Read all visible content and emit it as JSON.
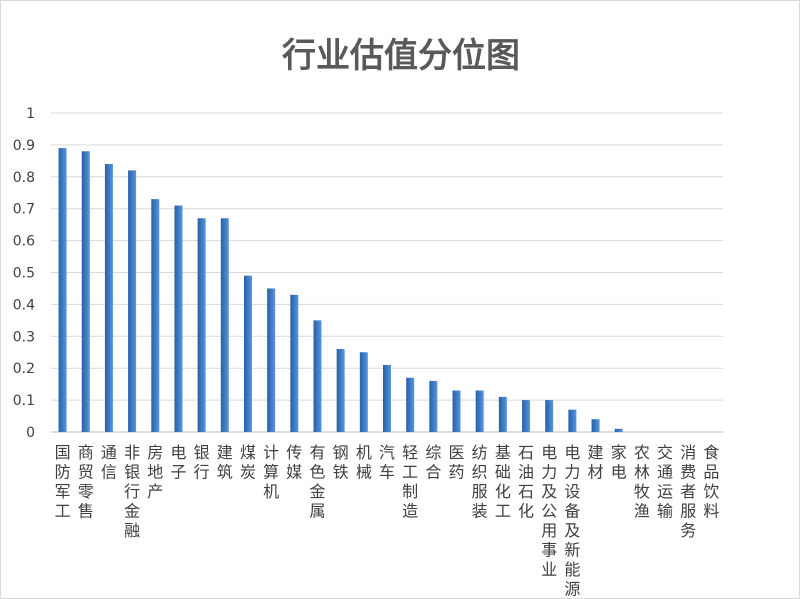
{
  "chart_data": {
    "type": "bar",
    "title": "行业估值分位图",
    "xlabel": "",
    "ylabel": "",
    "ylim": [
      0,
      1
    ],
    "yticks": [
      "0",
      "0.1",
      "0.2",
      "0.3",
      "0.4",
      "0.5",
      "0.6",
      "0.7",
      "0.8",
      "0.9",
      "1"
    ],
    "grid": true,
    "legend": "none",
    "bar_color": "#3b78c2",
    "categories": [
      "国防军工",
      "商贸零售",
      "通信",
      "非银行金融",
      "房地产",
      "电子",
      "银行",
      "建筑",
      "煤炭",
      "计算机",
      "传媒",
      "有色金属",
      "钢铁",
      "机械",
      "汽车",
      "轻工制造",
      "综合",
      "医药",
      "纺织服装",
      "基础化工",
      "石油石化",
      "电力及公用事业",
      "电力设备及新能源",
      "建材",
      "家电",
      "农林牧渔",
      "交通运输",
      "消费者服务",
      "食品饮料"
    ],
    "values": [
      0.89,
      0.88,
      0.84,
      0.82,
      0.73,
      0.71,
      0.67,
      0.67,
      0.49,
      0.45,
      0.43,
      0.35,
      0.26,
      0.25,
      0.21,
      0.17,
      0.16,
      0.13,
      0.13,
      0.11,
      0.1,
      0.1,
      0.07,
      0.04,
      0.01,
      0.0,
      0.0,
      0.0,
      0.0
    ]
  }
}
